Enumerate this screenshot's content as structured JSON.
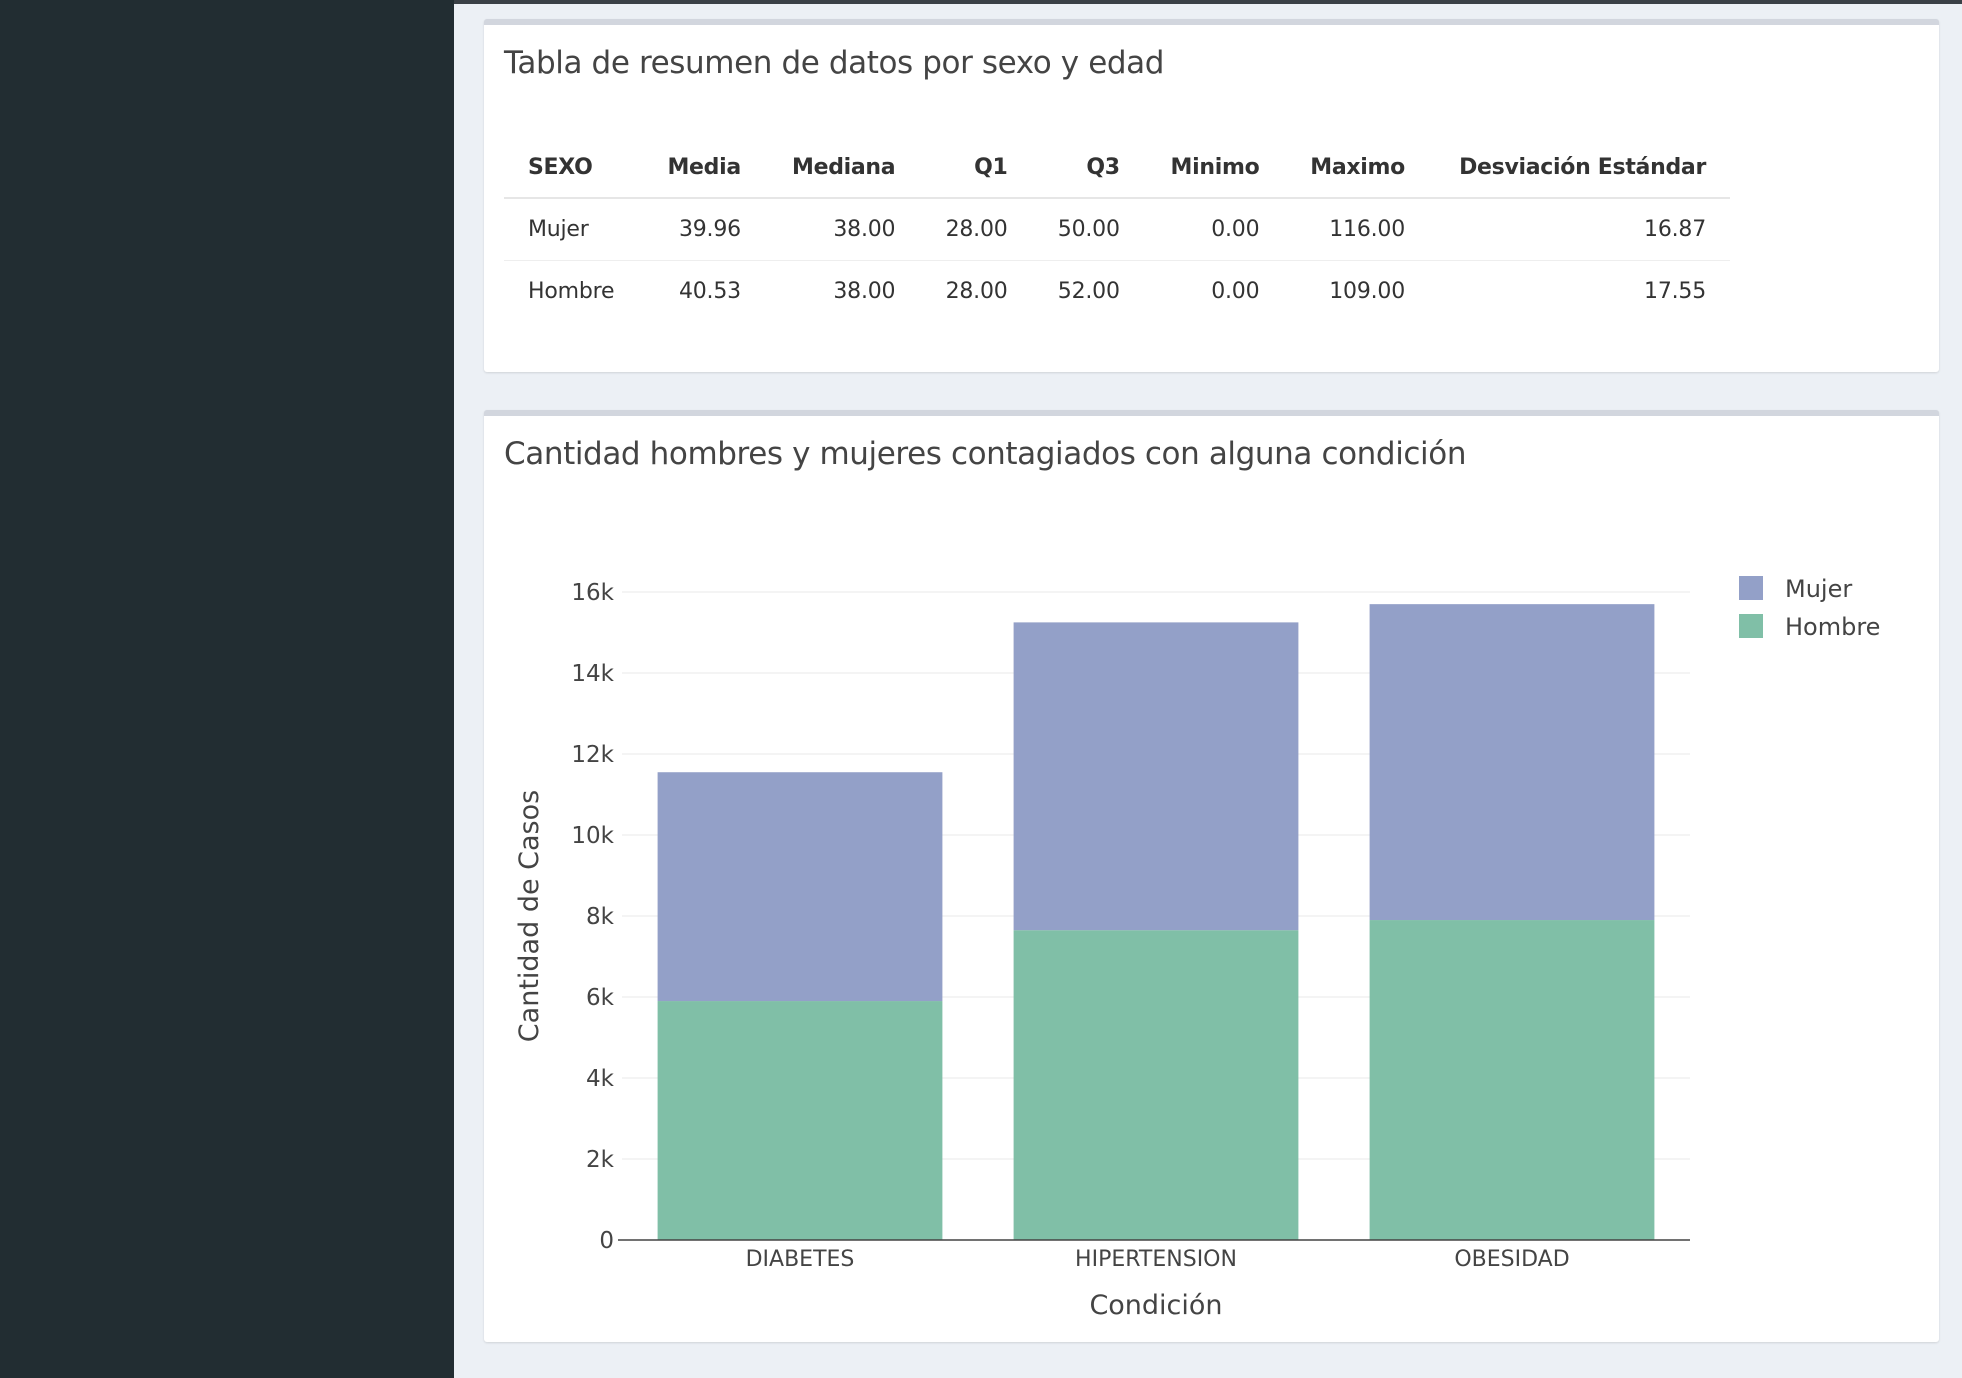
{
  "summary_table": {
    "title": "Tabla de resumen de datos por sexo y edad",
    "headers": [
      "SEXO",
      "Media",
      "Mediana",
      "Q1",
      "Q3",
      "Minimo",
      "Maximo",
      "Desviación Estándar"
    ],
    "rows": [
      [
        "Mujer",
        "39.96",
        "38.00",
        "28.00",
        "50.00",
        "0.00",
        "116.00",
        "16.87"
      ],
      [
        "Hombre",
        "40.53",
        "38.00",
        "28.00",
        "52.00",
        "0.00",
        "109.00",
        "17.55"
      ]
    ]
  },
  "chart_panel": {
    "title": "Cantidad hombres y mujeres contagiados con alguna condición"
  },
  "chart_data": {
    "type": "bar",
    "stacked": true,
    "categories": [
      "DIABETES",
      "HIPERTENSION",
      "OBESIDAD"
    ],
    "series": [
      {
        "name": "Hombre",
        "values": [
          5900,
          7650,
          7900
        ],
        "color": "#80bfa7"
      },
      {
        "name": "Mujer",
        "values": [
          5650,
          7600,
          7800
        ],
        "color": "#93a0c8"
      }
    ],
    "xlabel": "Condición",
    "ylabel": "Cantidad de Casos",
    "ylim": [
      0,
      16000
    ],
    "yticks": [
      {
        "value": 0,
        "label": "0"
      },
      {
        "value": 2000,
        "label": "2k"
      },
      {
        "value": 4000,
        "label": "4k"
      },
      {
        "value": 6000,
        "label": "6k"
      },
      {
        "value": 8000,
        "label": "8k"
      },
      {
        "value": 10000,
        "label": "10k"
      },
      {
        "value": 12000,
        "label": "12k"
      },
      {
        "value": 14000,
        "label": "14k"
      },
      {
        "value": 16000,
        "label": "16k"
      }
    ],
    "grid": true,
    "legend": {
      "placement": "top-right",
      "entries": [
        {
          "name": "Mujer",
          "color": "#93a0c8"
        },
        {
          "name": "Hombre",
          "color": "#80bfa7"
        }
      ]
    }
  }
}
